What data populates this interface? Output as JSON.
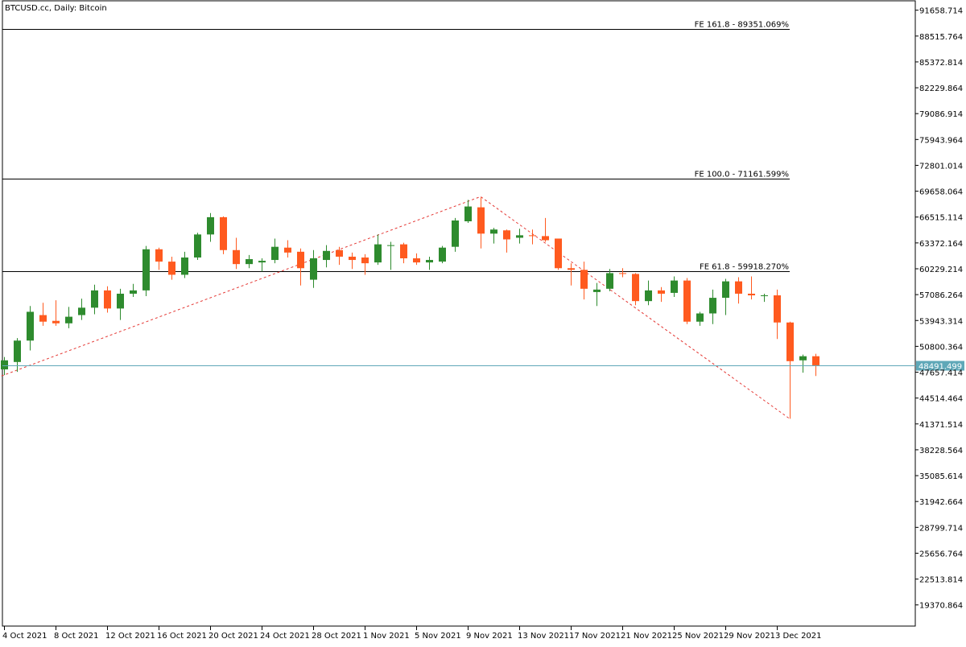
{
  "window": {
    "title": "BTCUSD.cc, Daily:  Bitcoin"
  },
  "colors": {
    "bull": "#2E8B2E",
    "bear": "#FF5A1F",
    "bid_line": "#5FA8B8",
    "bid_label_bg": "#5FA8B8",
    "fibo_level_line": "#000000",
    "fibo_trend": "#E53935",
    "axis": "#000000",
    "background": "#FFFFFF"
  },
  "chart_data": {
    "type": "candlestick",
    "title": "BTCUSD.cc, Daily:  Bitcoin",
    "ylim": [
      16800,
      92800
    ],
    "y_ticks": [
      19370.864,
      22513.814,
      25656.764,
      28799.714,
      31942.664,
      35085.614,
      38228.564,
      41371.514,
      44514.464,
      47657.414,
      50800.364,
      53943.314,
      57086.264,
      60229.214,
      63372.164,
      66515.114,
      69658.064,
      72801.014,
      75943.964,
      79086.914,
      82229.864,
      85372.814,
      88515.764,
      91658.714
    ],
    "x_ticks": [
      {
        "index": 0,
        "label": "4 Oct 2021"
      },
      {
        "index": 4,
        "label": "8 Oct 2021"
      },
      {
        "index": 8,
        "label": "12 Oct 2021"
      },
      {
        "index": 12,
        "label": "16 Oct 2021"
      },
      {
        "index": 16,
        "label": "20 Oct 2021"
      },
      {
        "index": 20,
        "label": "24 Oct 2021"
      },
      {
        "index": 24,
        "label": "28 Oct 2021"
      },
      {
        "index": 28,
        "label": "1 Nov 2021"
      },
      {
        "index": 32,
        "label": "5 Nov 2021"
      },
      {
        "index": 36,
        "label": "9 Nov 2021"
      },
      {
        "index": 40,
        "label": "13 Nov 2021"
      },
      {
        "index": 44,
        "label": "17 Nov 2021"
      },
      {
        "index": 48,
        "label": "21 Nov 2021"
      },
      {
        "index": 52,
        "label": "25 Nov 2021"
      },
      {
        "index": 56,
        "label": "29 Nov 2021"
      },
      {
        "index": 60,
        "label": "3 Dec 2021"
      }
    ],
    "candles": [
      {
        "o": 48000,
        "h": 49500,
        "l": 47300,
        "c": 49100
      },
      {
        "o": 48900,
        "h": 51800,
        "l": 47700,
        "c": 51500
      },
      {
        "o": 51500,
        "h": 55700,
        "l": 50300,
        "c": 55000
      },
      {
        "o": 54600,
        "h": 56100,
        "l": 53300,
        "c": 53800
      },
      {
        "o": 53900,
        "h": 56400,
        "l": 53300,
        "c": 53600
      },
      {
        "o": 53600,
        "h": 55600,
        "l": 53000,
        "c": 54400
      },
      {
        "o": 54600,
        "h": 56600,
        "l": 54000,
        "c": 55500
      },
      {
        "o": 55500,
        "h": 58300,
        "l": 54700,
        "c": 57600
      },
      {
        "o": 57600,
        "h": 58100,
        "l": 54900,
        "c": 55400
      },
      {
        "o": 55400,
        "h": 57800,
        "l": 54000,
        "c": 57200
      },
      {
        "o": 57200,
        "h": 58400,
        "l": 56800,
        "c": 57600
      },
      {
        "o": 57600,
        "h": 63000,
        "l": 56900,
        "c": 62600
      },
      {
        "o": 62600,
        "h": 62800,
        "l": 60100,
        "c": 61100
      },
      {
        "o": 61100,
        "h": 61700,
        "l": 58900,
        "c": 59500
      },
      {
        "o": 59500,
        "h": 62300,
        "l": 59100,
        "c": 61600
      },
      {
        "o": 61600,
        "h": 64600,
        "l": 61300,
        "c": 64400
      },
      {
        "o": 64400,
        "h": 67000,
        "l": 63500,
        "c": 66500
      },
      {
        "o": 66500,
        "h": 66600,
        "l": 62000,
        "c": 62500
      },
      {
        "o": 62500,
        "h": 64000,
        "l": 60200,
        "c": 60800
      },
      {
        "o": 60800,
        "h": 61900,
        "l": 60300,
        "c": 61400
      },
      {
        "o": 61000,
        "h": 61500,
        "l": 59900,
        "c": 61200
      },
      {
        "o": 61300,
        "h": 63900,
        "l": 60900,
        "c": 62900
      },
      {
        "o": 62800,
        "h": 63700,
        "l": 61600,
        "c": 62200
      },
      {
        "o": 62300,
        "h": 62700,
        "l": 58200,
        "c": 60300
      },
      {
        "o": 58900,
        "h": 62500,
        "l": 57900,
        "c": 61500
      },
      {
        "o": 61300,
        "h": 63100,
        "l": 60400,
        "c": 62400
      },
      {
        "o": 62500,
        "h": 62900,
        "l": 60700,
        "c": 61700
      },
      {
        "o": 61700,
        "h": 62200,
        "l": 60200,
        "c": 61300
      },
      {
        "o": 61600,
        "h": 62000,
        "l": 59500,
        "c": 60900
      },
      {
        "o": 61000,
        "h": 64400,
        "l": 60700,
        "c": 63200
      },
      {
        "o": 63100,
        "h": 63500,
        "l": 60100,
        "c": 63100
      },
      {
        "o": 63200,
        "h": 63400,
        "l": 60900,
        "c": 61500
      },
      {
        "o": 61500,
        "h": 62100,
        "l": 60700,
        "c": 61000
      },
      {
        "o": 61000,
        "h": 61700,
        "l": 60100,
        "c": 61300
      },
      {
        "o": 61100,
        "h": 63000,
        "l": 60900,
        "c": 62800
      },
      {
        "o": 62900,
        "h": 66400,
        "l": 62300,
        "c": 66100
      },
      {
        "o": 66000,
        "h": 68600,
        "l": 65800,
        "c": 67800
      },
      {
        "o": 67700,
        "h": 68900,
        "l": 62700,
        "c": 64500
      },
      {
        "o": 64500,
        "h": 65200,
        "l": 63300,
        "c": 65000
      },
      {
        "o": 64900,
        "h": 65000,
        "l": 62200,
        "c": 63800
      },
      {
        "o": 64000,
        "h": 65100,
        "l": 63300,
        "c": 64300
      },
      {
        "o": 64300,
        "h": 65000,
        "l": 63200,
        "c": 64200
      },
      {
        "o": 64200,
        "h": 66400,
        "l": 63500,
        "c": 63700
      },
      {
        "o": 63900,
        "h": 63800,
        "l": 60100,
        "c": 60300
      },
      {
        "o": 60300,
        "h": 60900,
        "l": 58200,
        "c": 60100
      },
      {
        "o": 60100,
        "h": 61100,
        "l": 56500,
        "c": 57800
      },
      {
        "o": 57400,
        "h": 58500,
        "l": 55700,
        "c": 57700
      },
      {
        "o": 57800,
        "h": 60200,
        "l": 57500,
        "c": 59700
      },
      {
        "o": 59700,
        "h": 60300,
        "l": 59200,
        "c": 59600
      },
      {
        "o": 59600,
        "h": 59700,
        "l": 55800,
        "c": 56300
      },
      {
        "o": 56300,
        "h": 58800,
        "l": 55800,
        "c": 57600
      },
      {
        "o": 57600,
        "h": 58000,
        "l": 56200,
        "c": 57200
      },
      {
        "o": 57300,
        "h": 59300,
        "l": 56800,
        "c": 58800
      },
      {
        "o": 58800,
        "h": 59100,
        "l": 53500,
        "c": 53800
      },
      {
        "o": 53800,
        "h": 55000,
        "l": 53300,
        "c": 54800
      },
      {
        "o": 54800,
        "h": 57700,
        "l": 53500,
        "c": 56700
      },
      {
        "o": 56700,
        "h": 59000,
        "l": 54600,
        "c": 58700
      },
      {
        "o": 58700,
        "h": 59200,
        "l": 56000,
        "c": 57200
      },
      {
        "o": 57200,
        "h": 59300,
        "l": 56500,
        "c": 57000
      },
      {
        "o": 57000,
        "h": 57200,
        "l": 56200,
        "c": 57000
      },
      {
        "o": 57000,
        "h": 57700,
        "l": 51700,
        "c": 53700
      },
      {
        "o": 53700,
        "h": 53800,
        "l": 42000,
        "c": 49000
      },
      {
        "o": 49100,
        "h": 49800,
        "l": 47600,
        "c": 49600
      },
      {
        "o": 49600,
        "h": 49900,
        "l": 47200,
        "c": 48500
      }
    ],
    "fibo_levels": [
      {
        "label": "FE 161.8 - 89351.069%",
        "price": 89351.069
      },
      {
        "label": "FE 100.0 - 71161.599%",
        "price": 71161.599
      },
      {
        "label": "FE 61.8 - 59918.270%",
        "price": 59918.27
      }
    ],
    "fibo_trend_points": [
      {
        "index": -0.2,
        "price": 47200
      },
      {
        "index": 37,
        "price": 69000
      },
      {
        "index": 61,
        "price": 42000
      }
    ],
    "fibo_extent_index": 61,
    "current_price": {
      "value": 48491.499,
      "label": "48491.499"
    }
  }
}
